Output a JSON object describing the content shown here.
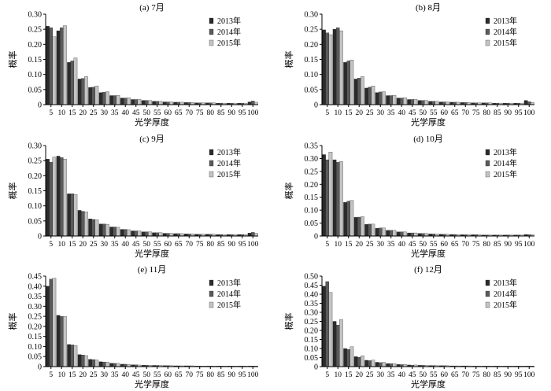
{
  "chart_data": [
    {
      "type": "bar",
      "title": "(a) 7月",
      "xlabel": "光学厚度",
      "ylabel": "概率",
      "ylim": [
        0,
        0.3
      ],
      "yticks": [
        "0",
        "0.05",
        "0.10",
        "0.15",
        "0.20",
        "0.25",
        "0.30"
      ],
      "categories": [
        "5",
        "10",
        "15",
        "20",
        "25",
        "30",
        "35",
        "40",
        "45",
        "50",
        "55",
        "60",
        "65",
        "70",
        "75",
        "80",
        "85",
        "90",
        "95",
        "100"
      ],
      "legend": "top-right",
      "series": [
        {
          "name": "2013年",
          "values": [
            0.26,
            0.245,
            0.14,
            0.085,
            0.057,
            0.04,
            0.03,
            0.022,
            0.017,
            0.014,
            0.011,
            0.009,
            0.008,
            0.007,
            0.006,
            0.006,
            0.005,
            0.005,
            0.005,
            0.009
          ]
        },
        {
          "name": "2014年",
          "values": [
            0.255,
            0.255,
            0.145,
            0.087,
            0.058,
            0.041,
            0.03,
            0.022,
            0.017,
            0.014,
            0.011,
            0.009,
            0.008,
            0.007,
            0.006,
            0.006,
            0.005,
            0.005,
            0.005,
            0.012
          ]
        },
        {
          "name": "2015年",
          "values": [
            0.225,
            0.262,
            0.155,
            0.093,
            0.062,
            0.043,
            0.031,
            0.023,
            0.018,
            0.014,
            0.011,
            0.009,
            0.008,
            0.007,
            0.006,
            0.006,
            0.005,
            0.005,
            0.005,
            0.008
          ]
        }
      ]
    },
    {
      "type": "bar",
      "title": "(b) 8月",
      "xlabel": "光学厚度",
      "ylabel": "概率",
      "ylim": [
        0,
        0.3
      ],
      "yticks": [
        "0",
        "0.05",
        "0.10",
        "0.15",
        "0.20",
        "0.25",
        "0.30"
      ],
      "categories": [
        "5",
        "10",
        "15",
        "20",
        "25",
        "30",
        "35",
        "40",
        "45",
        "50",
        "55",
        "60",
        "65",
        "70",
        "75",
        "80",
        "85",
        "90",
        "95",
        "100"
      ],
      "legend": "top-right",
      "series": [
        {
          "name": "2013年",
          "values": [
            0.248,
            0.25,
            0.14,
            0.085,
            0.055,
            0.04,
            0.03,
            0.022,
            0.017,
            0.014,
            0.011,
            0.009,
            0.008,
            0.007,
            0.006,
            0.006,
            0.005,
            0.005,
            0.005,
            0.014
          ]
        },
        {
          "name": "2014年",
          "values": [
            0.238,
            0.255,
            0.145,
            0.088,
            0.058,
            0.042,
            0.03,
            0.022,
            0.017,
            0.014,
            0.011,
            0.009,
            0.008,
            0.007,
            0.006,
            0.006,
            0.005,
            0.005,
            0.005,
            0.01
          ]
        },
        {
          "name": "2015年",
          "values": [
            0.232,
            0.245,
            0.148,
            0.093,
            0.062,
            0.043,
            0.031,
            0.023,
            0.018,
            0.014,
            0.011,
            0.009,
            0.008,
            0.007,
            0.006,
            0.006,
            0.005,
            0.005,
            0.005,
            0.007
          ]
        }
      ]
    },
    {
      "type": "bar",
      "title": "(c) 9月",
      "xlabel": "光学厚度",
      "ylabel": "概率",
      "ylim": [
        0,
        0.3
      ],
      "yticks": [
        "0",
        "0.05",
        "0.10",
        "0.15",
        "0.20",
        "0.25",
        "0.30"
      ],
      "categories": [
        "5",
        "10",
        "15",
        "20",
        "25",
        "30",
        "35",
        "40",
        "45",
        "50",
        "55",
        "60",
        "65",
        "70",
        "75",
        "80",
        "85",
        "90",
        "95",
        "100"
      ],
      "legend": "top-right",
      "series": [
        {
          "name": "2013年",
          "values": [
            0.255,
            0.265,
            0.14,
            0.085,
            0.057,
            0.04,
            0.03,
            0.022,
            0.017,
            0.014,
            0.011,
            0.009,
            0.008,
            0.007,
            0.006,
            0.006,
            0.005,
            0.005,
            0.005,
            0.01
          ]
        },
        {
          "name": "2014年",
          "values": [
            0.245,
            0.26,
            0.14,
            0.082,
            0.055,
            0.04,
            0.03,
            0.022,
            0.017,
            0.014,
            0.011,
            0.009,
            0.008,
            0.007,
            0.006,
            0.006,
            0.005,
            0.005,
            0.005,
            0.012
          ]
        },
        {
          "name": "2015年",
          "values": [
            0.262,
            0.255,
            0.138,
            0.08,
            0.054,
            0.039,
            0.029,
            0.021,
            0.017,
            0.014,
            0.011,
            0.009,
            0.008,
            0.007,
            0.006,
            0.006,
            0.005,
            0.005,
            0.005,
            0.009
          ]
        }
      ]
    },
    {
      "type": "bar",
      "title": "(d) 10月",
      "xlabel": "光学厚度",
      "ylabel": "概率",
      "ylim": [
        0,
        0.35
      ],
      "yticks": [
        "0",
        "0.05",
        "0.10",
        "0.15",
        "0.20",
        "0.25",
        "0.30",
        "0.35"
      ],
      "categories": [
        "5",
        "10",
        "15",
        "20",
        "25",
        "30",
        "35",
        "40",
        "45",
        "50",
        "55",
        "60",
        "65",
        "70",
        "75",
        "80",
        "85",
        "90",
        "95",
        "100"
      ],
      "legend": "top-right",
      "series": [
        {
          "name": "2013年",
          "values": [
            0.315,
            0.295,
            0.13,
            0.072,
            0.045,
            0.03,
            0.022,
            0.016,
            0.012,
            0.01,
            0.008,
            0.007,
            0.006,
            0.005,
            0.005,
            0.004,
            0.004,
            0.004,
            0.004,
            0.006
          ]
        },
        {
          "name": "2014年",
          "values": [
            0.295,
            0.285,
            0.135,
            0.073,
            0.046,
            0.031,
            0.022,
            0.016,
            0.012,
            0.01,
            0.008,
            0.007,
            0.006,
            0.005,
            0.005,
            0.004,
            0.004,
            0.004,
            0.004,
            0.005
          ]
        },
        {
          "name": "2015年",
          "values": [
            0.325,
            0.288,
            0.138,
            0.075,
            0.046,
            0.031,
            0.022,
            0.016,
            0.012,
            0.01,
            0.008,
            0.007,
            0.006,
            0.005,
            0.005,
            0.004,
            0.004,
            0.004,
            0.004,
            0.005
          ]
        }
      ]
    },
    {
      "type": "bar",
      "title": "(e) 11月",
      "xlabel": "光学厚度",
      "ylabel": "概率",
      "ylim": [
        0,
        0.45
      ],
      "yticks": [
        "0",
        "0.05",
        "0.10",
        "0.15",
        "0.20",
        "0.25",
        "0.30",
        "0.35",
        "0.40",
        "0.45"
      ],
      "categories": [
        "5",
        "10",
        "15",
        "20",
        "25",
        "30",
        "35",
        "40",
        "45",
        "50",
        "55",
        "60",
        "65",
        "70",
        "75",
        "80",
        "85",
        "90",
        "95",
        "100"
      ],
      "legend": "top-right",
      "series": [
        {
          "name": "2013年",
          "values": [
            0.4,
            0.255,
            0.11,
            0.06,
            0.036,
            0.024,
            0.017,
            0.012,
            0.009,
            0.007,
            0.006,
            0.005,
            0.004,
            0.004,
            0.003,
            0.003,
            0.003,
            0.003,
            0.003,
            0.003
          ]
        },
        {
          "name": "2014年",
          "values": [
            0.435,
            0.25,
            0.108,
            0.058,
            0.035,
            0.023,
            0.016,
            0.012,
            0.009,
            0.007,
            0.006,
            0.005,
            0.004,
            0.004,
            0.003,
            0.003,
            0.003,
            0.003,
            0.003,
            0.003
          ]
        },
        {
          "name": "2015年",
          "values": [
            0.44,
            0.25,
            0.105,
            0.055,
            0.033,
            0.022,
            0.016,
            0.011,
            0.008,
            0.007,
            0.006,
            0.005,
            0.004,
            0.004,
            0.003,
            0.003,
            0.003,
            0.003,
            0.003,
            0.003
          ]
        }
      ]
    },
    {
      "type": "bar",
      "title": "(f) 12月",
      "xlabel": "光学厚度",
      "ylabel": "概率",
      "ylim": [
        0,
        0.5
      ],
      "yticks": [
        "0",
        "0.05",
        "0.10",
        "0.15",
        "0.20",
        "0.25",
        "0.30",
        "0.35",
        "0.40",
        "0.45",
        "0.50"
      ],
      "categories": [
        "5",
        "10",
        "15",
        "20",
        "25",
        "30",
        "35",
        "40",
        "45",
        "50",
        "55",
        "60",
        "65",
        "70",
        "75",
        "80",
        "85",
        "90",
        "95",
        "100"
      ],
      "legend": "top-right",
      "series": [
        {
          "name": "2013年",
          "values": [
            0.445,
            0.25,
            0.1,
            0.055,
            0.035,
            0.024,
            0.017,
            0.012,
            0.009,
            0.007,
            0.006,
            0.005,
            0.004,
            0.004,
            0.003,
            0.003,
            0.003,
            0.003,
            0.003,
            0.003
          ]
        },
        {
          "name": "2014年",
          "values": [
            0.47,
            0.23,
            0.095,
            0.052,
            0.033,
            0.022,
            0.016,
            0.011,
            0.008,
            0.007,
            0.006,
            0.005,
            0.004,
            0.004,
            0.003,
            0.003,
            0.003,
            0.003,
            0.003,
            0.003
          ]
        },
        {
          "name": "2015年",
          "values": [
            0.41,
            0.26,
            0.11,
            0.06,
            0.036,
            0.024,
            0.017,
            0.012,
            0.009,
            0.007,
            0.006,
            0.005,
            0.004,
            0.004,
            0.003,
            0.003,
            0.003,
            0.003,
            0.003,
            0.003
          ]
        }
      ]
    }
  ],
  "colors": {
    "series": [
      "#2b2b2b",
      "#5a5a5a",
      "#c4c4c4"
    ],
    "axis": "#000000"
  }
}
